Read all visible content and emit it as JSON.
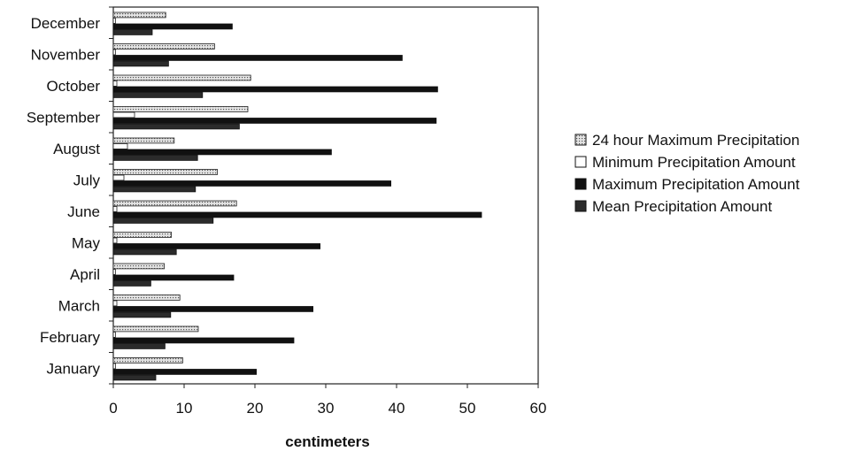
{
  "chart_data": {
    "type": "bar",
    "orientation": "horizontal",
    "categories": [
      "January",
      "February",
      "March",
      "April",
      "May",
      "June",
      "July",
      "August",
      "September",
      "October",
      "November",
      "December"
    ],
    "series": [
      {
        "name": "24 hour Maximum Precipitation",
        "values": [
          9.8,
          12.0,
          9.4,
          7.2,
          8.2,
          17.4,
          14.7,
          8.6,
          19.0,
          19.4,
          14.3,
          7.4
        ]
      },
      {
        "name": "Minimum Precipitation Amount",
        "values": [
          0.3,
          0.3,
          0.5,
          0.3,
          0.5,
          0.5,
          1.5,
          2.0,
          3.0,
          0.5,
          0.3,
          0.3
        ]
      },
      {
        "name": "Maximum Precipitation Amount",
        "values": [
          20.2,
          25.5,
          28.2,
          17.0,
          29.2,
          52.0,
          39.2,
          30.8,
          45.6,
          45.8,
          40.8,
          16.8
        ]
      },
      {
        "name": "Mean Precipitation Amount",
        "values": [
          6.0,
          7.3,
          8.1,
          5.3,
          8.9,
          14.1,
          11.6,
          11.9,
          17.8,
          12.6,
          7.8,
          5.5
        ]
      }
    ],
    "xlabel": "centimeters",
    "ylabel": "",
    "xlim": [
      0,
      60
    ],
    "xticks": [
      0,
      10,
      20,
      30,
      40,
      50,
      60
    ],
    "grid": false,
    "legend_position": "right",
    "colors": {
      "24 hour Maximum Precipitation": "#c8c8c8",
      "Minimum Precipitation Amount": "#ffffff",
      "Maximum Precipitation Amount": "#111111",
      "Mean Precipitation Amount": "#2b2b2b"
    }
  }
}
